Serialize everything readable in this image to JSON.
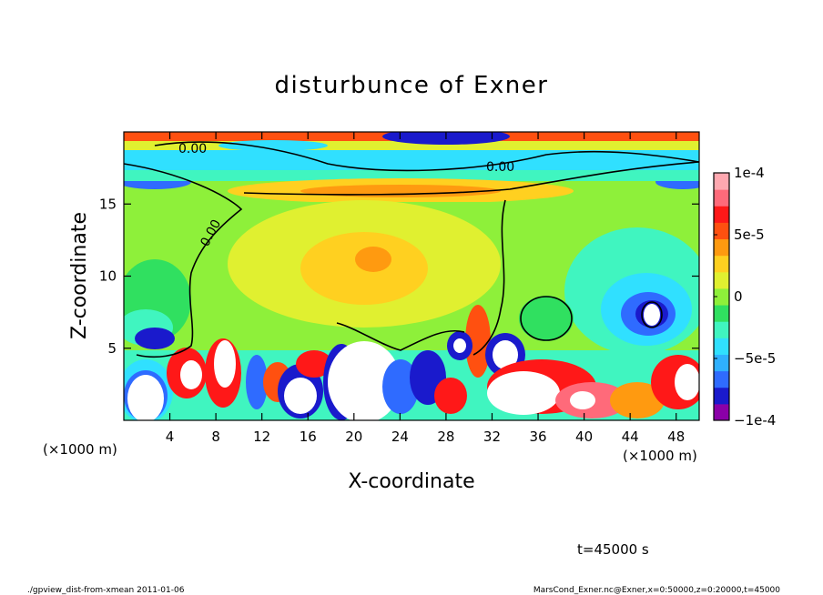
{
  "chart_data": {
    "type": "heatmap",
    "title": "disturbunce of Exner",
    "xlabel": "X-coordinate",
    "ylabel": "Z-coordinate",
    "x_unit": "(×1000 m)",
    "y_unit": "(×1000 m)",
    "xlim": [
      0,
      50
    ],
    "ylim": [
      0,
      20
    ],
    "x_ticks": [
      4,
      8,
      12,
      16,
      20,
      24,
      28,
      32,
      36,
      40,
      44,
      48
    ],
    "y_ticks": [
      5,
      10,
      15
    ],
    "colorbar": {
      "ticks": [
        {
          "value": 0.0001,
          "label": "1e-4"
        },
        {
          "value": 5e-05,
          "label": "5e-5"
        },
        {
          "value": 0,
          "label": "0"
        },
        {
          "value": -5e-05,
          "label": "−5e-5"
        },
        {
          "value": -0.0001,
          "label": "−1e-4"
        }
      ],
      "range": [
        -0.0001,
        0.0001
      ],
      "colors": [
        "#8b00a8",
        "#1a1acc",
        "#2f6bff",
        "#2fb0ff",
        "#30e0ff",
        "#40f5c0",
        "#30e060",
        "#8ef03a",
        "#e0f030",
        "#ffd020",
        "#ff9a10",
        "#ff5010",
        "#ff1818",
        "#ff6a7a",
        "#ffa8b0"
      ]
    },
    "contours": [
      {
        "value": 0,
        "label": "0.00"
      }
    ],
    "time_label": "t=45000 s"
  },
  "footer": {
    "left": "./gpview_dist-from-xmean  2011-01-06",
    "right": "MarsCond_Exner.nc@Exner,x=0:50000,z=0:20000,t=45000"
  }
}
